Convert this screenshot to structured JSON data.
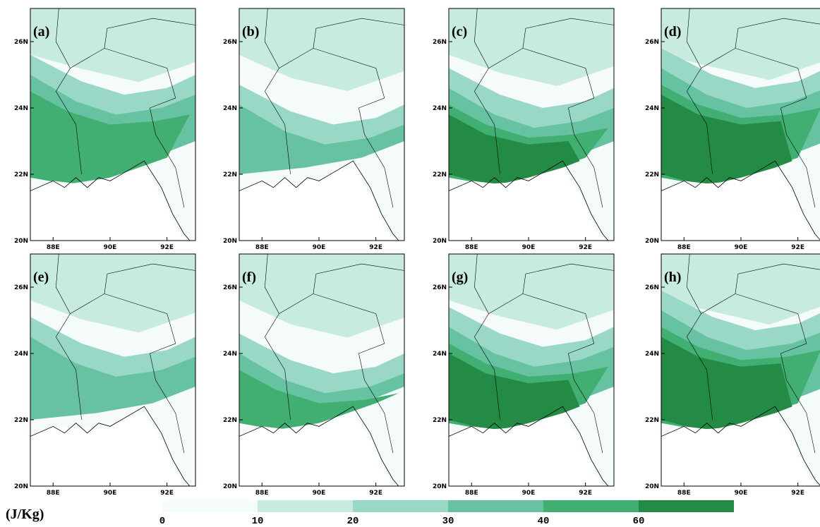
{
  "panels": [
    {
      "label": "(a)"
    },
    {
      "label": "(b)"
    },
    {
      "label": "(c)"
    },
    {
      "label": "(d)"
    },
    {
      "label": "(e)"
    },
    {
      "label": "(f)"
    },
    {
      "label": "(g)"
    },
    {
      "label": "(h)"
    }
  ],
  "lat_ticks": [
    "20N",
    "22N",
    "24N",
    "26N"
  ],
  "lon_ticks": [
    "88E",
    "90E",
    "92E"
  ],
  "colorbar": {
    "unit": "(J/Kg)",
    "labels": [
      "0",
      "10",
      "20",
      "30",
      "40",
      "60"
    ],
    "colors": [
      "#f4fbfa",
      "#c7eae1",
      "#99d8c6",
      "#66c2a0",
      "#41ae72",
      "#238b45"
    ]
  }
}
